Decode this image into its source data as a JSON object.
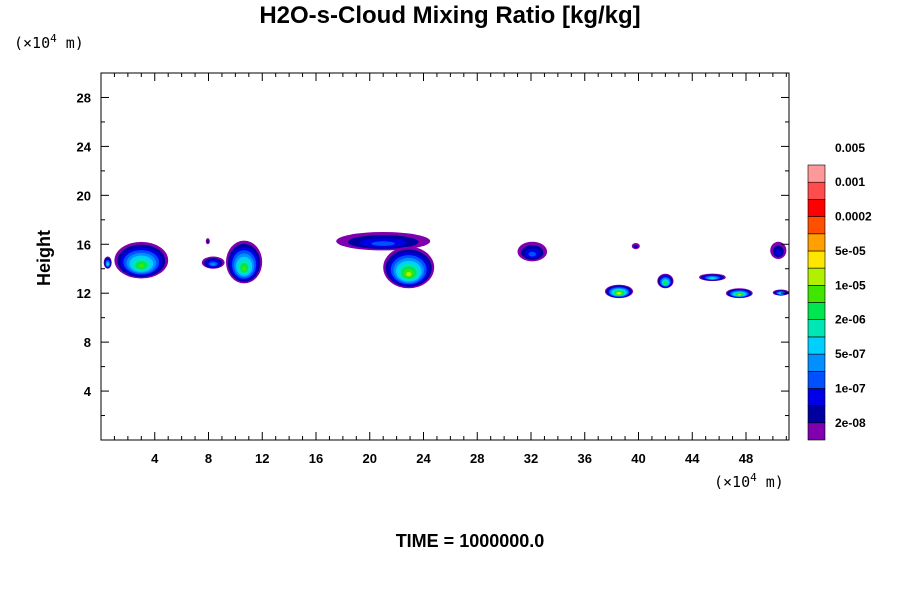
{
  "chart_data": {
    "type": "contour",
    "title": "H2O-s-Cloud Mixing Ratio [kg/kg]",
    "time_label": "TIME = 1000000.0",
    "xlabel": "",
    "ylabel": "Height",
    "x_unit": "(×10",
    "x_unit_exp": "4",
    "x_unit_suffix": " m)",
    "y_unit": "(×10",
    "y_unit_exp": "4",
    "y_unit_suffix": " m)",
    "xlim": [
      0,
      51.2
    ],
    "ylim": [
      0,
      30
    ],
    "x_ticks": [
      4,
      8,
      12,
      16,
      20,
      24,
      28,
      32,
      36,
      40,
      44,
      48
    ],
    "x_tick_labels": [
      "4",
      "8",
      "12",
      "16",
      "20",
      "24",
      "28",
      "32",
      "36",
      "40",
      "44",
      "48"
    ],
    "y_ticks": [
      4,
      8,
      12,
      16,
      20,
      24,
      28
    ],
    "y_tick_labels": [
      "4",
      "8",
      "12",
      "16",
      "20",
      "24",
      "28"
    ],
    "grid": false,
    "colorbar": {
      "colors": [
        "#8000b0",
        "#0000a0",
        "#0000e8",
        "#0050ff",
        "#0090ff",
        "#00d0ff",
        "#00e6b4",
        "#00e650",
        "#40e600",
        "#b0f000",
        "#ffe600",
        "#ffa000",
        "#ff5000",
        "#ff0000",
        "#ff4c4c",
        "#ff9999"
      ],
      "labels": [
        "2e-08",
        "1e-07",
        "5e-07",
        "2e-06",
        "1e-05",
        "5e-05",
        "0.0002",
        "0.001",
        "0.005"
      ]
    },
    "cloud_patches": [
      {
        "x": [
          0.2,
          0.8
        ],
        "y": [
          14.0,
          15.0
        ],
        "max_level": 6
      },
      {
        "x": [
          1.0,
          5.0
        ],
        "y": [
          13.2,
          16.2
        ],
        "max_level": 8
      },
      {
        "x": [
          7.5,
          9.2
        ],
        "y": [
          14.0,
          15.0
        ],
        "max_level": 4
      },
      {
        "x": [
          7.8,
          8.1
        ],
        "y": [
          16.0,
          16.5
        ],
        "max_level": 1
      },
      {
        "x": [
          9.3,
          12.0
        ],
        "y": [
          12.8,
          16.3
        ],
        "max_level": 8
      },
      {
        "x": [
          17.5,
          24.5
        ],
        "y": [
          15.5,
          17.0
        ],
        "max_level": 3
      },
      {
        "x": [
          21.0,
          24.8
        ],
        "y": [
          12.4,
          15.8
        ],
        "max_level": 9
      },
      {
        "x": [
          31.0,
          33.2
        ],
        "y": [
          14.6,
          16.2
        ],
        "max_level": 3
      },
      {
        "x": [
          39.5,
          40.1
        ],
        "y": [
          15.6,
          16.1
        ],
        "max_level": 1
      },
      {
        "x": [
          37.5,
          39.6
        ],
        "y": [
          11.6,
          12.7
        ],
        "max_level": 10
      },
      {
        "x": [
          41.4,
          42.6
        ],
        "y": [
          12.4,
          13.6
        ],
        "max_level": 8
      },
      {
        "x": [
          44.5,
          46.5
        ],
        "y": [
          13.0,
          13.6
        ],
        "max_level": 6
      },
      {
        "x": [
          46.5,
          48.5
        ],
        "y": [
          11.6,
          12.4
        ],
        "max_level": 9
      },
      {
        "x": [
          49.8,
          51.0
        ],
        "y": [
          14.8,
          16.2
        ],
        "max_level": 2
      },
      {
        "x": [
          50.0,
          51.2
        ],
        "y": [
          11.8,
          12.3
        ],
        "max_level": 6
      }
    ]
  }
}
